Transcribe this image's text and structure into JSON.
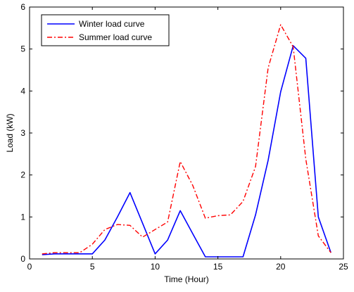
{
  "chart_data": {
    "type": "line",
    "xlabel": "Time (Hour)",
    "ylabel": "Load (kW)",
    "xlim": [
      0,
      25
    ],
    "ylim": [
      0,
      6
    ],
    "xticks": [
      "0",
      "5",
      "10",
      "15",
      "20",
      "25"
    ],
    "yticks": [
      "0",
      "1",
      "2",
      "3",
      "4",
      "5",
      "6"
    ],
    "grid": false,
    "legend_position": "top-left",
    "series": [
      {
        "name": "Winter load curve",
        "color": "#0000ff",
        "line_style": "solid",
        "x": [
          1,
          2,
          3,
          4,
          5,
          6,
          7,
          8,
          9,
          10,
          11,
          12,
          13,
          14,
          15,
          16,
          17,
          18,
          19,
          20,
          21,
          22,
          23,
          24
        ],
        "values": [
          0.1,
          0.12,
          0.12,
          0.12,
          0.12,
          0.45,
          1.0,
          1.58,
          0.85,
          0.12,
          0.45,
          1.15,
          0.6,
          0.05,
          0.05,
          0.05,
          0.05,
          1.05,
          2.35,
          3.98,
          5.08,
          4.78,
          1.0,
          0.15
        ]
      },
      {
        "name": "Summer load curve",
        "color": "#ff0000",
        "line_style": "dash-dot",
        "x": [
          1,
          2,
          3,
          4,
          5,
          6,
          7,
          8,
          9,
          10,
          11,
          12,
          13,
          14,
          15,
          16,
          17,
          18,
          19,
          20,
          21,
          22,
          23,
          24
        ],
        "values": [
          0.12,
          0.15,
          0.15,
          0.15,
          0.35,
          0.7,
          0.82,
          0.8,
          0.52,
          0.7,
          0.88,
          2.32,
          1.75,
          0.97,
          1.03,
          1.05,
          1.37,
          2.2,
          4.55,
          5.58,
          5.05,
          2.38,
          0.55,
          0.15
        ]
      }
    ]
  }
}
